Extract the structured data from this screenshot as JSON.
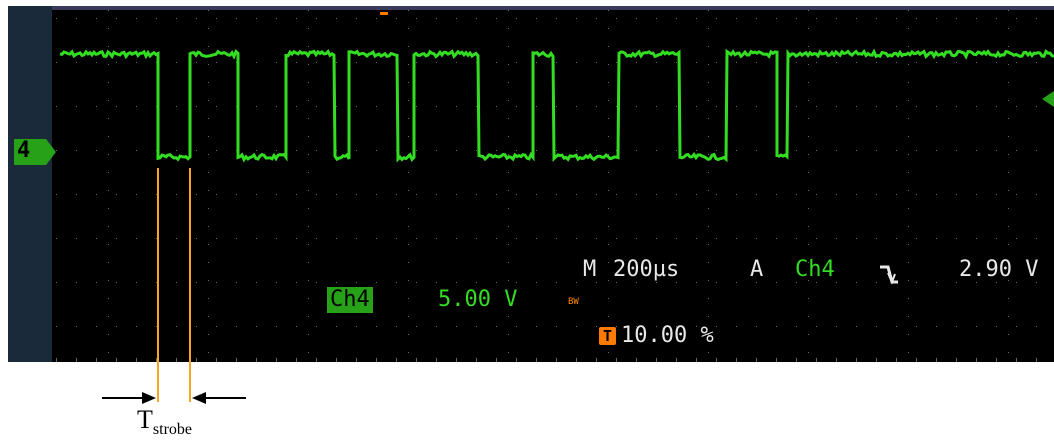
{
  "channel_marker": {
    "label": "4"
  },
  "waveform_color": "#33dd22",
  "timebase": {
    "prefix": "M",
    "value": "200µs",
    "trigger_prefix": "A",
    "trigger_source": "Ch4",
    "trigger_slope_icon": "falling-edge-icon",
    "trigger_level": "2.90 V"
  },
  "channel_settings": {
    "label": "Ch4",
    "scale": "5.00 V",
    "bw_label": "BW"
  },
  "trigger_position": {
    "icon_label": "T",
    "value": "10.00 %"
  },
  "annotation": {
    "symbol": "T",
    "subscript": "strobe",
    "cursor_color": "#f5a623"
  }
}
